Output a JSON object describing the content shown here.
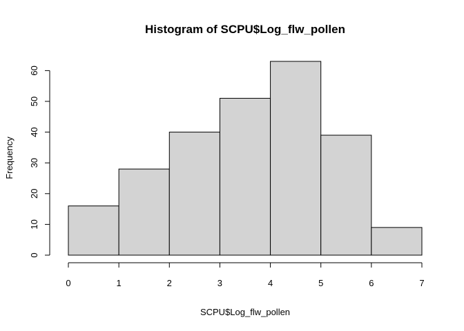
{
  "chart_data": {
    "type": "bar",
    "title": "Histogram of SCPU$Log_flw_pollen",
    "xlabel": "SCPU$Log_flw_pollen",
    "ylabel": "Frequency",
    "bins": [
      {
        "from": 0,
        "to": 1,
        "count": 16
      },
      {
        "from": 1,
        "to": 2,
        "count": 28
      },
      {
        "from": 2,
        "to": 3,
        "count": 40
      },
      {
        "from": 3,
        "to": 4,
        "count": 51
      },
      {
        "from": 4,
        "to": 5,
        "count": 63
      },
      {
        "from": 5,
        "to": 6,
        "count": 39
      },
      {
        "from": 6,
        "to": 7,
        "count": 9
      }
    ],
    "xlim": [
      0,
      7
    ],
    "ylim": [
      0,
      63
    ],
    "x_ticks": [
      "0",
      "1",
      "2",
      "3",
      "4",
      "5",
      "6",
      "7"
    ],
    "y_ticks": [
      "0",
      "10",
      "20",
      "30",
      "40",
      "50",
      "60"
    ],
    "bar_fill": "#d3d3d3",
    "grid": false
  }
}
